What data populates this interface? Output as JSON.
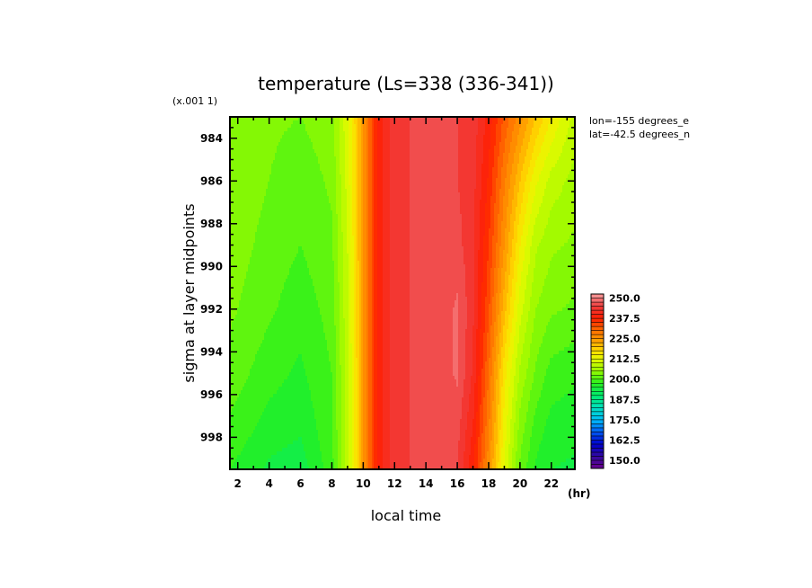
{
  "chart_data": {
    "type": "heatmap",
    "title": "temperature (Ls=338 (336-341))",
    "xlabel": "local time",
    "x_unit": "(hr)",
    "ylabel": "sigma at layer midpoints",
    "y_scale_note": "(x.001 1)",
    "annotations": [
      "lon=-155 degrees_e",
      "lat=-42.5 degrees_n"
    ],
    "xlim": [
      1.5,
      23.5
    ],
    "ylim": [
      999.5,
      983.0
    ],
    "x_ticks": [
      2,
      4,
      6,
      8,
      10,
      12,
      14,
      16,
      18,
      20,
      22
    ],
    "y_ticks": [
      984,
      986,
      988,
      990,
      992,
      994,
      996,
      998
    ],
    "colorbar": {
      "min": 145,
      "max": 252.5,
      "step": 2.5,
      "labels": [
        "250.0",
        "237.5",
        "225.0",
        "212.5",
        "200.0",
        "187.5",
        "175.0",
        "162.5",
        "150.0"
      ],
      "label_values": [
        250,
        237.5,
        225,
        212.5,
        200,
        187.5,
        175,
        162.5,
        150
      ]
    },
    "temperature_profiles": [
      {
        "sigma": 983.0,
        "x": [
          1.5,
          4,
          6,
          8,
          9,
          9.5,
          10,
          10.5,
          11,
          12,
          13,
          14,
          15,
          16,
          17,
          18,
          19,
          20,
          21,
          22,
          23.5
        ],
        "t": [
          205,
          203,
          202.5,
          204,
          212,
          218,
          225,
          232,
          239,
          244,
          245,
          245,
          245,
          245,
          244,
          239,
          232,
          226,
          220,
          215,
          209
        ]
      },
      {
        "sigma": 986.0,
        "x": [
          1.5,
          4,
          6,
          8,
          9,
          9.5,
          10,
          10.5,
          11,
          12,
          13,
          14,
          15,
          16,
          17,
          18,
          19,
          20,
          21,
          22,
          23.5
        ],
        "t": [
          204.5,
          202.5,
          201,
          203,
          211,
          217.5,
          225,
          232,
          239,
          244,
          245,
          245,
          245,
          245,
          243.5,
          237,
          228,
          220,
          213,
          209,
          206.5
        ]
      },
      {
        "sigma": 989.0,
        "x": [
          1.5,
          4,
          6,
          8,
          9,
          9.5,
          10,
          10.5,
          11,
          12,
          13,
          14,
          15,
          16,
          17,
          18,
          19,
          20,
          21,
          22,
          23.5
        ],
        "t": [
          204,
          201.5,
          200,
          202,
          210,
          217,
          225,
          232,
          239,
          244,
          245,
          245,
          245.5,
          246,
          243,
          235,
          225,
          215,
          208,
          205.5,
          204.5
        ]
      },
      {
        "sigma": 992.0,
        "x": [
          1.5,
          4,
          6,
          8,
          9,
          9.5,
          10,
          10.5,
          11,
          12,
          13,
          14,
          15,
          16,
          17,
          18,
          19,
          20,
          21,
          22,
          23.5
        ],
        "t": [
          203,
          200.5,
          198.5,
          201,
          209.5,
          216.5,
          225,
          232,
          239,
          244,
          245,
          245,
          246,
          248,
          243,
          233,
          221,
          211,
          205,
          203,
          202
        ]
      },
      {
        "sigma": 995.0,
        "x": [
          1.5,
          4,
          6,
          8,
          9,
          9.5,
          10,
          10.5,
          11,
          12,
          13,
          14,
          15,
          16,
          17,
          18,
          19,
          20,
          21,
          22,
          23.5
        ],
        "t": [
          201.5,
          198.5,
          197,
          200,
          209,
          216,
          225,
          232,
          239,
          244,
          245,
          245,
          246,
          248,
          242,
          230,
          216,
          207,
          202,
          199,
          198
        ]
      },
      {
        "sigma": 997.5,
        "x": [
          1.5,
          4,
          6,
          8,
          9,
          9.5,
          10,
          10.5,
          11,
          12,
          13,
          14,
          15,
          16,
          17,
          18,
          19,
          20,
          21,
          22,
          23.5
        ],
        "t": [
          199.5,
          196.5,
          195.5,
          199.5,
          209,
          216,
          225,
          232,
          239,
          244,
          245,
          245,
          246,
          246,
          240,
          228,
          214,
          204,
          199,
          196.5,
          196
        ]
      },
      {
        "sigma": 999.5,
        "x": [
          1.5,
          4,
          6,
          8,
          9,
          9.5,
          10,
          10.5,
          11,
          12,
          13,
          14,
          15,
          16,
          17,
          18,
          19,
          20,
          21,
          22,
          23.5
        ],
        "t": [
          197.5,
          194.5,
          193.5,
          199,
          209,
          216,
          225,
          232,
          239,
          244,
          245,
          245,
          246,
          245,
          238,
          226,
          212,
          202,
          197,
          195,
          194.5
        ]
      }
    ]
  }
}
